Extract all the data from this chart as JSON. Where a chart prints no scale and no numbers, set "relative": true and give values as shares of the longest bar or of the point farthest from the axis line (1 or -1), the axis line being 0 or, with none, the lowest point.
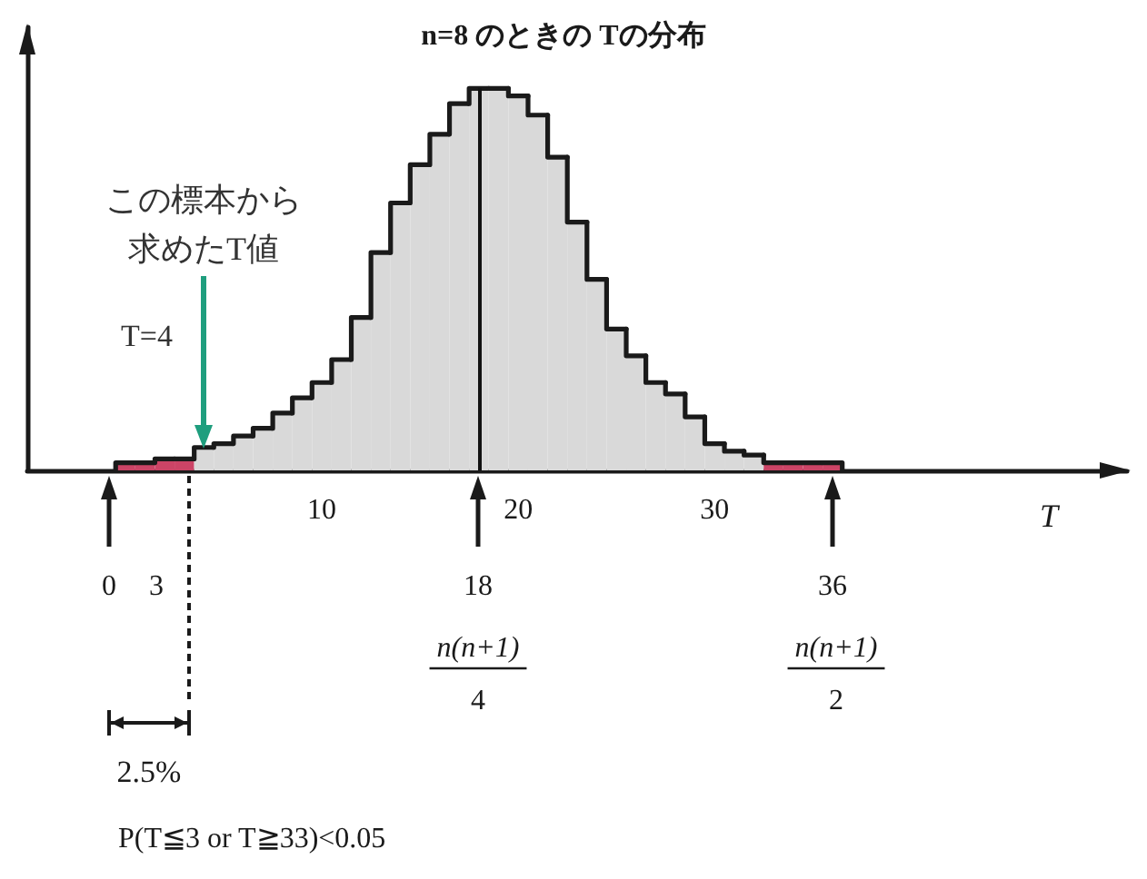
{
  "chart_data": {
    "type": "bar",
    "title": "n=8 のときの Tの分布",
    "xlabel": "T",
    "x": [
      0,
      1,
      2,
      3,
      4,
      5,
      6,
      7,
      8,
      9,
      10,
      11,
      12,
      13,
      14,
      15,
      16,
      17,
      18,
      19,
      20,
      21,
      22,
      23,
      24,
      25,
      26,
      27,
      28,
      29,
      30,
      31,
      32,
      33,
      34,
      35,
      36
    ],
    "values": [
      0.02,
      0.02,
      0.03,
      0.03,
      0.06,
      0.07,
      0.09,
      0.11,
      0.15,
      0.19,
      0.23,
      0.29,
      0.4,
      0.57,
      0.7,
      0.8,
      0.88,
      0.96,
      1,
      1,
      0.98,
      0.93,
      0.82,
      0.65,
      0.5,
      0.37,
      0.3,
      0.23,
      0.2,
      0.14,
      0.07,
      0.05,
      0.04,
      0.02,
      0.02,
      0.02,
      0.02
    ],
    "colors": [
      "#cc4466",
      "#cc4466",
      "#cc4466",
      "#cc4466",
      "#d9d9d9",
      "#d9d9d9",
      "#d9d9d9",
      "#d9d9d9",
      "#d9d9d9",
      "#d9d9d9",
      "#d9d9d9",
      "#d9d9d9",
      "#d9d9d9",
      "#d9d9d9",
      "#d9d9d9",
      "#d9d9d9",
      "#d9d9d9",
      "#d9d9d9",
      "#d9d9d9",
      "#d9d9d9",
      "#d9d9d9",
      "#d9d9d9",
      "#d9d9d9",
      "#d9d9d9",
      "#d9d9d9",
      "#d9d9d9",
      "#d9d9d9",
      "#d9d9d9",
      "#d9d9d9",
      "#d9d9d9",
      "#d9d9d9",
      "#d9d9d9",
      "#d9d9d9",
      "#cc4466",
      "#cc4466",
      "#cc4466",
      "#cc4466"
    ],
    "relative": true,
    "xlim": [
      -5,
      51
    ],
    "xticks": [
      10,
      20,
      30
    ],
    "grid": false,
    "ref_lines": [
      {
        "axis": "x",
        "value": 18,
        "color": "#111111"
      }
    ],
    "annotations": [
      "この標本から求めたT値",
      "T=4",
      "0",
      "3",
      "18",
      "n(n+1)",
      "4",
      "36",
      "n(n+1)",
      "2",
      "2.5%",
      "P(T≦3 or T≧33)<0.05"
    ]
  }
}
